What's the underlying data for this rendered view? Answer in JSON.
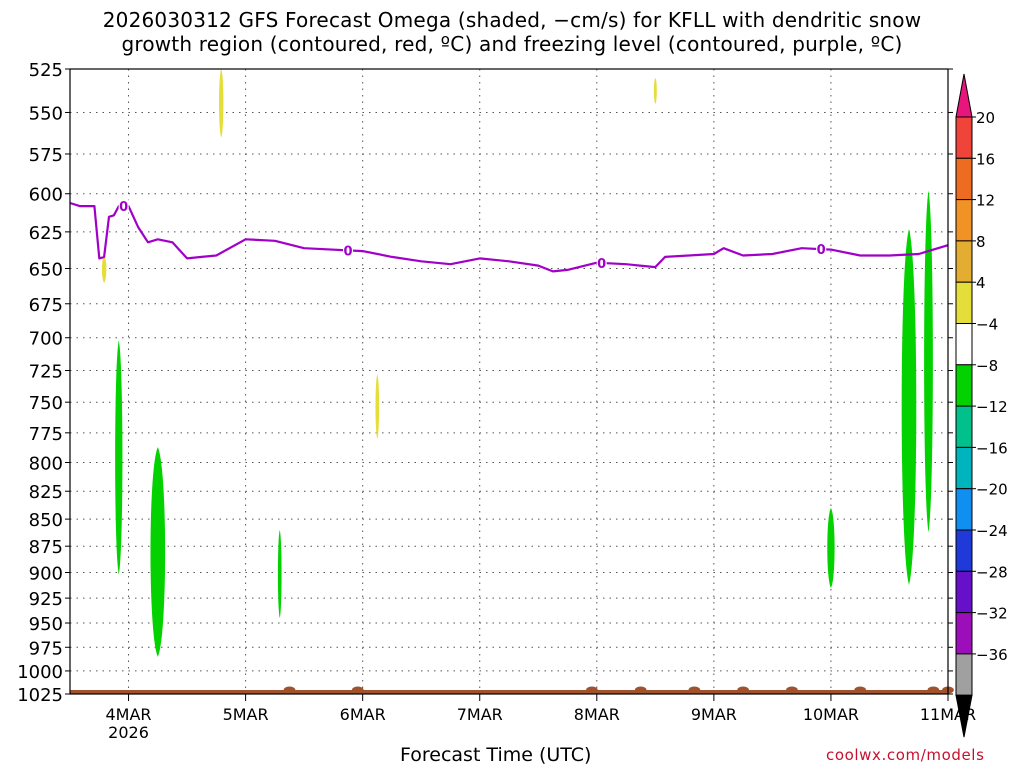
{
  "title": {
    "line1": "2026030312 GFS Forecast Omega (shaded, −cm/s) for KFLL with dendritic snow",
    "line2": "growth region (contoured, red, ºC) and freezing level (contoured, purple, ºC)"
  },
  "footer": {
    "xlabel": "Forecast Time (UTC)",
    "credit": "coolwx.com/models"
  },
  "chart_data": {
    "type": "heatmap",
    "y_axis": {
      "label": "",
      "scale": "log",
      "inverted": true,
      "range": [
        1025,
        525
      ],
      "ticks": [
        525,
        550,
        575,
        600,
        625,
        650,
        675,
        700,
        725,
        750,
        775,
        800,
        825,
        850,
        875,
        900,
        925,
        950,
        975,
        1000,
        1025
      ]
    },
    "x_axis": {
      "label": "Forecast Time (UTC)",
      "range": [
        "2026-03-03T12",
        "2026-03-11T00"
      ],
      "ticks": [
        {
          "date": "2026-03-04",
          "label": "4MAR",
          "sublabel": "2026"
        },
        {
          "date": "2026-03-05",
          "label": "5MAR",
          "sublabel": ""
        },
        {
          "date": "2026-03-06",
          "label": "6MAR",
          "sublabel": ""
        },
        {
          "date": "2026-03-07",
          "label": "7MAR",
          "sublabel": ""
        },
        {
          "date": "2026-03-08",
          "label": "8MAR",
          "sublabel": ""
        },
        {
          "date": "2026-03-09",
          "label": "9MAR",
          "sublabel": ""
        },
        {
          "date": "2026-03-10",
          "label": "10MAR",
          "sublabel": ""
        },
        {
          "date": "2026-03-11",
          "label": "11MAR",
          "sublabel": ""
        }
      ]
    },
    "grid": true,
    "colorbar": {
      "placement": "right",
      "labels": [
        "20",
        "16",
        "12",
        "8",
        "4",
        "−4",
        "−8",
        "−12",
        "−16",
        "−20",
        "−24",
        "−28",
        "−32",
        "−36"
      ],
      "colors": [
        "#e7157c",
        "#f0443a",
        "#ee6b22",
        "#f19224",
        "#e2ad30",
        "#e5dd39",
        "#ffffff",
        "#03d200",
        "#00c18c",
        "#00b4bd",
        "#0f8ff0",
        "#1f3ad8",
        "#6610c9",
        "#9c0eb9",
        "#a0a0a0",
        "#000000"
      ]
    },
    "freezing_level": {
      "color": "#a100c8",
      "contour_label": "0",
      "points": [
        [
          "2026-03-03T12",
          606
        ],
        [
          "2026-03-03T14",
          608
        ],
        [
          "2026-03-03T16",
          608
        ],
        [
          "2026-03-03T17",
          608
        ],
        [
          "2026-03-03T18",
          643
        ],
        [
          "2026-03-03T19",
          642
        ],
        [
          "2026-03-03T20",
          615
        ],
        [
          "2026-03-03T21",
          614
        ],
        [
          "2026-03-03T22",
          608
        ],
        [
          "2026-03-04T00",
          608
        ],
        [
          "2026-03-04T02",
          622
        ],
        [
          "2026-03-04T04",
          632
        ],
        [
          "2026-03-04T06",
          630
        ],
        [
          "2026-03-04T09",
          632
        ],
        [
          "2026-03-04T12",
          643
        ],
        [
          "2026-03-04T15",
          642
        ],
        [
          "2026-03-04T18",
          641
        ],
        [
          "2026-03-05T00",
          630
        ],
        [
          "2026-03-05T06",
          631
        ],
        [
          "2026-03-05T12",
          636
        ],
        [
          "2026-03-06T00",
          638
        ],
        [
          "2026-03-06T06",
          642
        ],
        [
          "2026-03-06T12",
          645
        ],
        [
          "2026-03-06T18",
          647
        ],
        [
          "2026-03-07T00",
          643
        ],
        [
          "2026-03-07T06",
          645
        ],
        [
          "2026-03-07T12",
          648
        ],
        [
          "2026-03-07T15",
          652
        ],
        [
          "2026-03-07T18",
          651
        ],
        [
          "2026-03-08T00",
          646
        ],
        [
          "2026-03-08T06",
          647
        ],
        [
          "2026-03-08T12",
          649
        ],
        [
          "2026-03-08T14",
          642
        ],
        [
          "2026-03-09T00",
          640
        ],
        [
          "2026-03-09T02",
          636
        ],
        [
          "2026-03-09T06",
          641
        ],
        [
          "2026-03-09T12",
          640
        ],
        [
          "2026-03-09T18",
          636
        ],
        [
          "2026-03-10T00",
          637
        ],
        [
          "2026-03-10T06",
          641
        ],
        [
          "2026-03-10T12",
          641
        ],
        [
          "2026-03-10T18",
          640
        ],
        [
          "2026-03-10T21",
          637
        ],
        [
          "2026-03-11T00",
          634
        ]
      ]
    },
    "omega_regions": [
      {
        "value_range": "4 to 8",
        "color": "#e5dd39",
        "center": "2026-03-03T19",
        "half_width_h": 0.6,
        "top": 641,
        "bottom": 660
      },
      {
        "value_range": "4 to 8",
        "color": "#e5dd39",
        "center": "2026-03-04T19",
        "half_width_h": 0.6,
        "top": 525,
        "bottom": 565
      },
      {
        "value_range": "4 to 8",
        "color": "#e5dd39",
        "center": "2026-03-06T03",
        "half_width_h": 0.5,
        "top": 728,
        "bottom": 780
      },
      {
        "value_range": "4 to 8",
        "color": "#e5dd39",
        "center": "2026-03-08T12",
        "half_width_h": 0.4,
        "top": 530,
        "bottom": 545
      },
      {
        "value_range": "-4 to -8",
        "color": "#03d200",
        "center": "2026-03-03T22",
        "half_width_h": 1.0,
        "top": 702,
        "bottom": 902
      },
      {
        "value_range": "-4 to -8",
        "color": "#03d200",
        "center": "2026-03-04T06",
        "half_width_h": 2.0,
        "top": 787,
        "bottom": 985
      },
      {
        "value_range": "-4 to -8",
        "color": "#03d200",
        "center": "2026-03-05T07",
        "half_width_h": 0.5,
        "top": 860,
        "bottom": 945
      },
      {
        "value_range": "-4 to -8",
        "color": "#03d200",
        "center": "2026-03-10T00",
        "half_width_h": 1.0,
        "top": 840,
        "bottom": 915
      },
      {
        "value_range": "-4 to -8",
        "color": "#03d200",
        "center": "2026-03-10T16",
        "half_width_h": 2.0,
        "top": 623,
        "bottom": 912
      },
      {
        "value_range": "-4 to -8",
        "color": "#03d200",
        "center": "2026-03-10T20",
        "half_width_h": 1.2,
        "top": 598,
        "bottom": 862
      }
    ],
    "ground": {
      "color": "#a0522d",
      "bumps": [
        "2026-03-05T09",
        "2026-03-05T23",
        "2026-03-07T23",
        "2026-03-08T09",
        "2026-03-08T20",
        "2026-03-09T06",
        "2026-03-09T16",
        "2026-03-10T06",
        "2026-03-10T21",
        "2026-03-11T00"
      ]
    }
  }
}
